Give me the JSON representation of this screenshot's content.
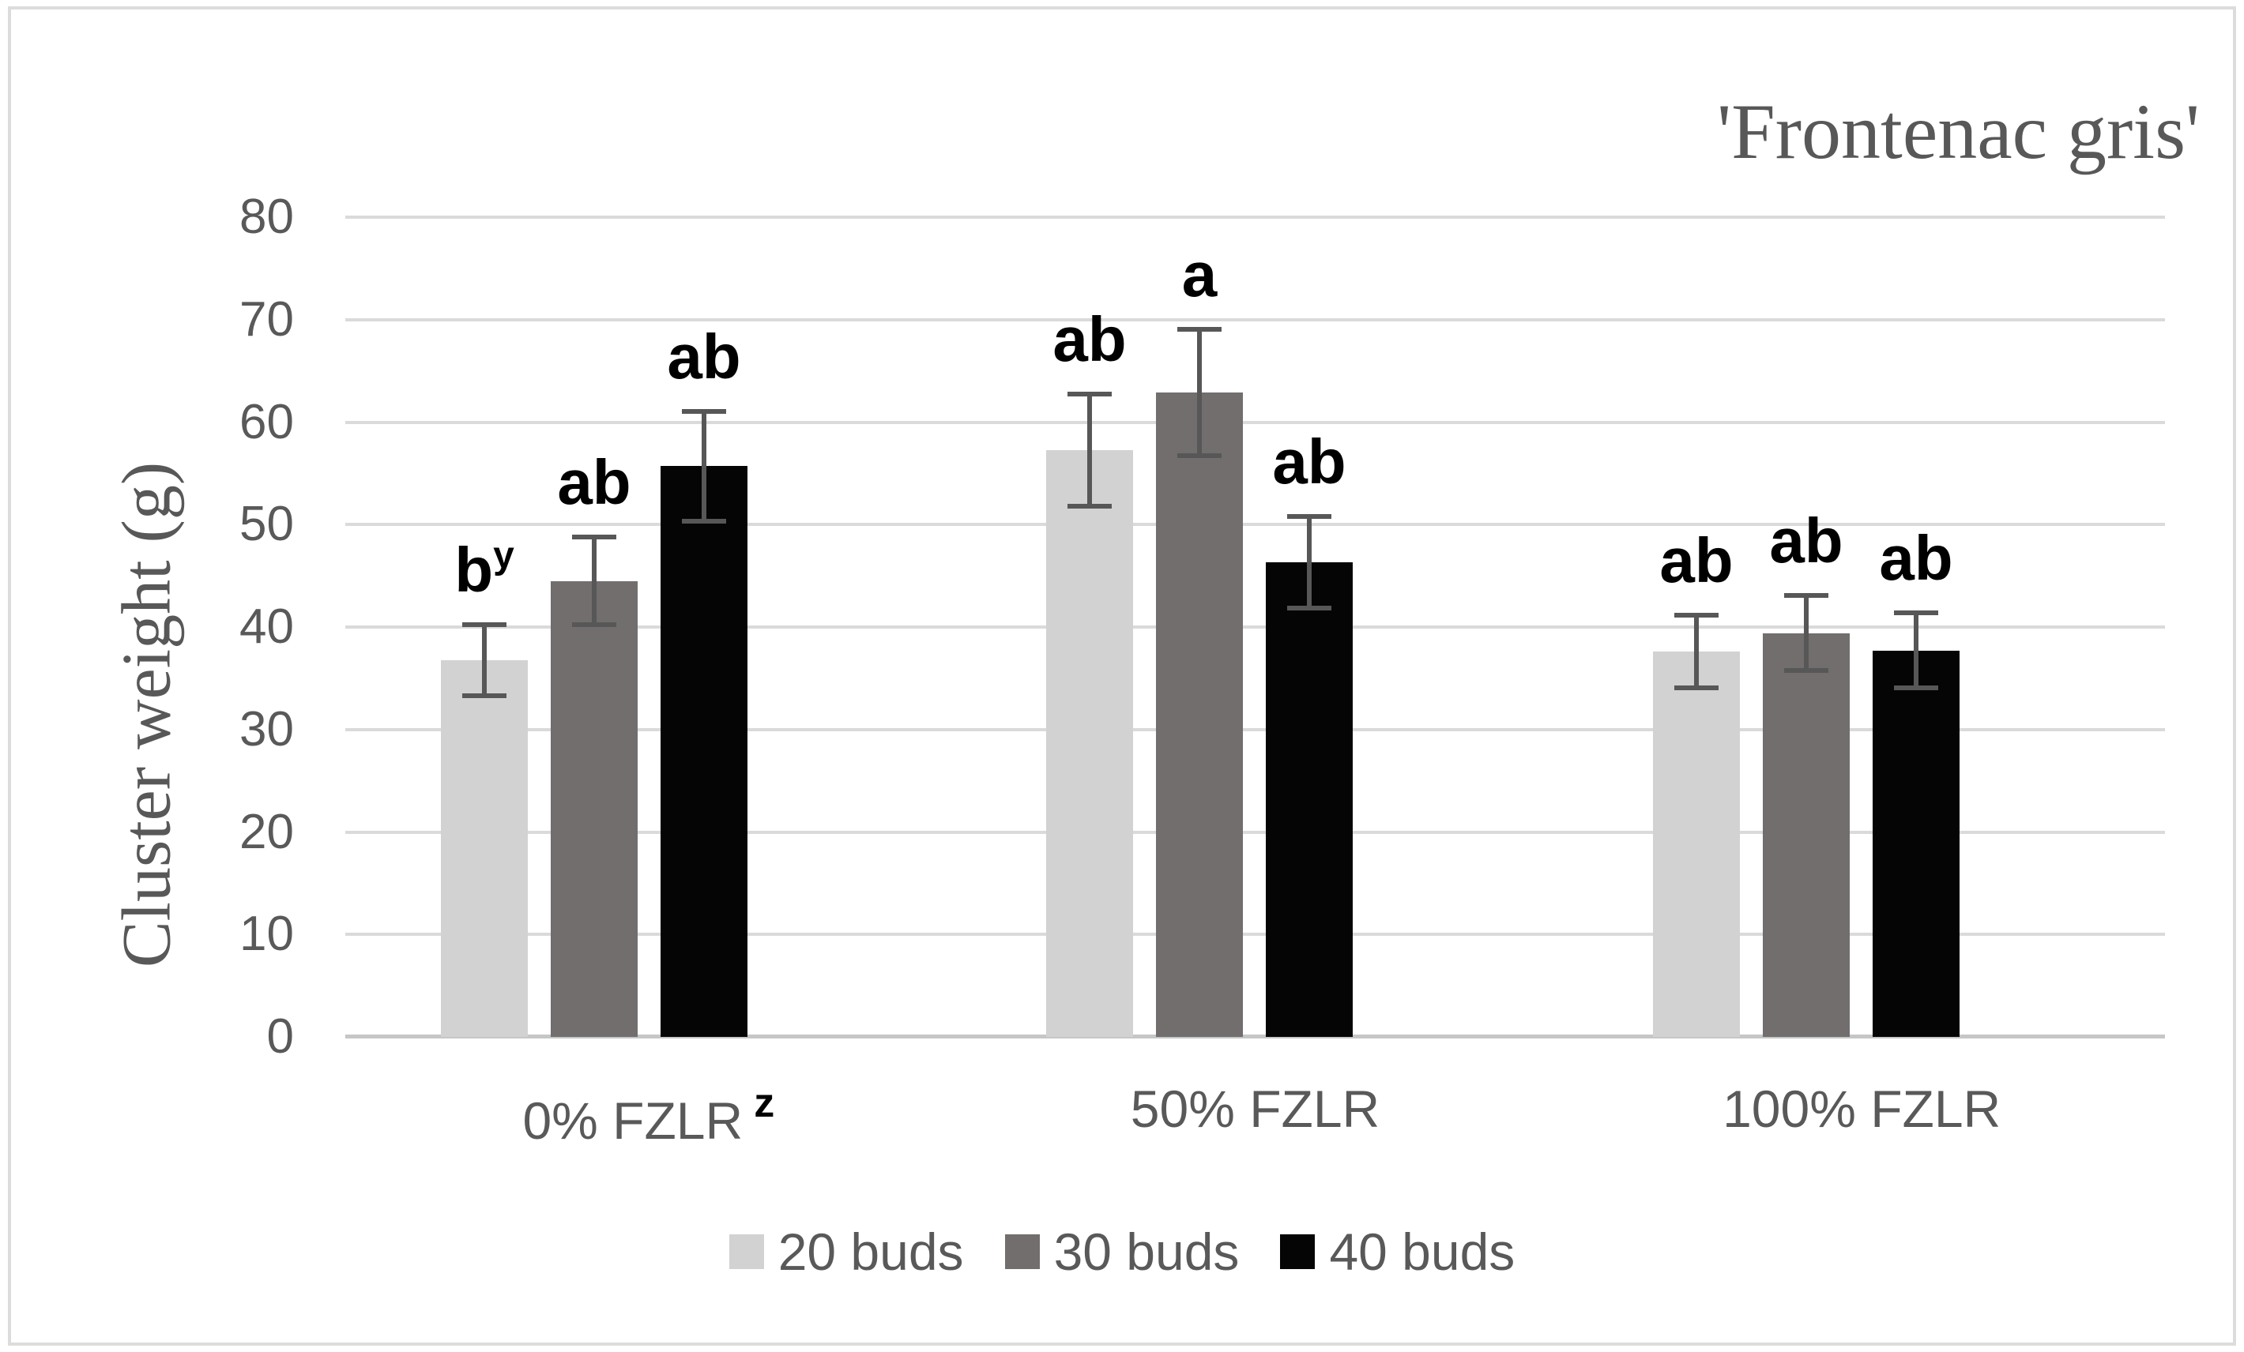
{
  "chart_data": {
    "type": "bar",
    "title": "'Frontenac gris'",
    "ylabel": "Cluster weight (g)",
    "xlabel": "",
    "ylim": [
      0,
      80
    ],
    "ytick_step": 10,
    "grid": true,
    "legend_position": "bottom",
    "error_bars": true,
    "categories": [
      {
        "label": "0% FZLR",
        "superscript": "z"
      },
      {
        "label": "50% FZLR",
        "superscript": ""
      },
      {
        "label": "100% FZLR",
        "superscript": ""
      }
    ],
    "series": [
      {
        "name": "20 buds",
        "color": "#d2d2d2",
        "values": [
          36.8,
          57.3,
          37.6
        ],
        "errors": [
          3.7,
          5.7,
          3.8
        ],
        "letters": [
          {
            "text": "b",
            "superscript": "y"
          },
          {
            "text": "ab",
            "superscript": ""
          },
          {
            "text": "ab",
            "superscript": ""
          }
        ]
      },
      {
        "name": "30 buds",
        "color": "#716e6d",
        "values": [
          44.5,
          62.9,
          39.4
        ],
        "errors": [
          4.5,
          6.4,
          3.9
        ],
        "letters": [
          {
            "text": "ab",
            "superscript": ""
          },
          {
            "text": "a",
            "superscript": ""
          },
          {
            "text": "ab",
            "superscript": ""
          }
        ]
      },
      {
        "name": "40 buds",
        "color": "#050505",
        "values": [
          55.7,
          46.3,
          37.7
        ],
        "errors": [
          5.6,
          4.7,
          3.9
        ],
        "letters": [
          {
            "text": "ab",
            "superscript": ""
          },
          {
            "text": "ab",
            "superscript": ""
          },
          {
            "text": "ab",
            "superscript": ""
          }
        ]
      }
    ],
    "colors": {
      "axis_text": "#595959",
      "title_text": "#585858",
      "gridline": "#dadada",
      "baseline": "#c6c6c6",
      "error_bar": "#575757",
      "letter_text": "#000000",
      "frame_border": "#dcdcdc"
    }
  }
}
